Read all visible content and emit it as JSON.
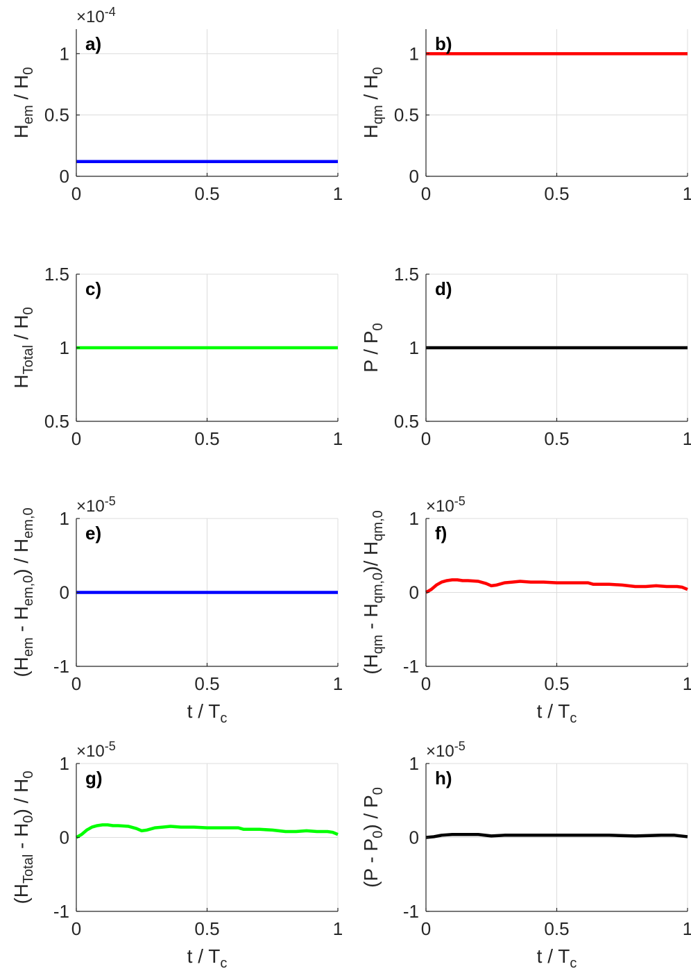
{
  "chart_data": [
    {
      "type": "line",
      "panel": "a)",
      "xlim": [
        0,
        1
      ],
      "ylim": [
        0,
        1.2
      ],
      "xticks": [
        0,
        0.5,
        1
      ],
      "xtick_labels": [
        "0",
        "0.5",
        "1"
      ],
      "yticks": [
        0,
        0.5,
        1
      ],
      "ytick_labels": [
        "0",
        "0.5",
        "1"
      ],
      "exponent": "×10^-4",
      "exponent_base": "×10",
      "exponent_power": "-4",
      "xlabel": "",
      "ylabel": {
        "main": "H",
        "sub": "em",
        "tail": " / H",
        "sub2": "0"
      },
      "series": [
        {
          "name": "Hem",
          "color": "#0000ff",
          "x": [
            0,
            1
          ],
          "y": [
            0.12,
            0.12
          ]
        }
      ]
    },
    {
      "type": "line",
      "panel": "b)",
      "xlim": [
        0,
        1
      ],
      "ylim": [
        0,
        1.2
      ],
      "xticks": [
        0,
        0.5,
        1
      ],
      "xtick_labels": [
        "0",
        "0.5",
        "1"
      ],
      "yticks": [
        0,
        0.5,
        1
      ],
      "ytick_labels": [
        "0",
        "0.5",
        "1"
      ],
      "exponent": "",
      "xlabel": "",
      "ylabel": {
        "main": "H",
        "sub": "qm",
        "tail": " / H",
        "sub2": "0"
      },
      "series": [
        {
          "name": "Hqm",
          "color": "#ff0000",
          "x": [
            0,
            1
          ],
          "y": [
            1.0,
            1.0
          ]
        }
      ]
    },
    {
      "type": "line",
      "panel": "c)",
      "xlim": [
        0,
        1
      ],
      "ylim": [
        0.5,
        1.5
      ],
      "xticks": [
        0,
        0.5,
        1
      ],
      "xtick_labels": [
        "0",
        "0.5",
        "1"
      ],
      "yticks": [
        0.5,
        1,
        1.5
      ],
      "ytick_labels": [
        "0.5",
        "1",
        "1.5"
      ],
      "exponent": "",
      "xlabel": "",
      "ylabel": {
        "main": "H",
        "sub": "Total",
        "tail": " / H",
        "sub2": "0"
      },
      "series": [
        {
          "name": "HTotal",
          "color": "#00ff00",
          "x": [
            0,
            1
          ],
          "y": [
            1.0,
            1.0
          ]
        }
      ]
    },
    {
      "type": "line",
      "panel": "d)",
      "xlim": [
        0,
        1
      ],
      "ylim": [
        0.5,
        1.5
      ],
      "xticks": [
        0,
        0.5,
        1
      ],
      "xtick_labels": [
        "0",
        "0.5",
        "1"
      ],
      "yticks": [
        0.5,
        1,
        1.5
      ],
      "ytick_labels": [
        "0.5",
        "1",
        "1.5"
      ],
      "exponent": "",
      "xlabel": "",
      "ylabel": {
        "main": "P / P",
        "sub": "0",
        "tail": "",
        "sub2": ""
      },
      "series": [
        {
          "name": "P",
          "color": "#000000",
          "x": [
            0,
            1
          ],
          "y": [
            1.0,
            1.0
          ]
        }
      ]
    },
    {
      "type": "line",
      "panel": "e)",
      "xlim": [
        0,
        1
      ],
      "ylim": [
        -1,
        1
      ],
      "xticks": [
        0,
        0.5,
        1
      ],
      "xtick_labels": [
        "0",
        "0.5",
        "1"
      ],
      "yticks": [
        -1,
        0,
        1
      ],
      "ytick_labels": [
        "-1",
        "0",
        "1"
      ],
      "exponent": "×10^-5",
      "exponent_base": "×10",
      "exponent_power": "-5",
      "xlabel": {
        "main": "t / T",
        "sub": "c"
      },
      "ylabel": {
        "main": "(H",
        "sub": "em",
        "tail": " - H",
        "sub2": "em,0",
        "tail2": ") / H",
        "sub3": "em,0"
      },
      "series": [
        {
          "name": "dHem",
          "color": "#0000ff",
          "x": [
            0,
            1
          ],
          "y": [
            0,
            0
          ]
        }
      ]
    },
    {
      "type": "line",
      "panel": "f)",
      "xlim": [
        0,
        1
      ],
      "ylim": [
        -1,
        1
      ],
      "xticks": [
        0,
        0.5,
        1
      ],
      "xtick_labels": [
        "0",
        "0.5",
        "1"
      ],
      "yticks": [
        -1,
        0,
        1
      ],
      "ytick_labels": [
        "-1",
        "0",
        "1"
      ],
      "exponent": "×10^-5",
      "exponent_base": "×10",
      "exponent_power": "-5",
      "xlabel": {
        "main": "t / T",
        "sub": "c"
      },
      "ylabel": {
        "main": "(H",
        "sub": "qm",
        "tail": " - H",
        "sub2": "qm,0",
        "tail2": ")/ H",
        "sub3": "qm,0"
      },
      "series": [
        {
          "name": "dHqm",
          "color": "#ff0000",
          "x": [
            0,
            0.02,
            0.04,
            0.06,
            0.08,
            0.1,
            0.12,
            0.14,
            0.16,
            0.2,
            0.23,
            0.25,
            0.27,
            0.3,
            0.33,
            0.36,
            0.4,
            0.45,
            0.5,
            0.55,
            0.6,
            0.62,
            0.64,
            0.7,
            0.75,
            0.8,
            0.84,
            0.88,
            0.92,
            0.96,
            0.98,
            1.0
          ],
          "y": [
            0,
            0.04,
            0.1,
            0.14,
            0.16,
            0.17,
            0.17,
            0.16,
            0.16,
            0.15,
            0.12,
            0.09,
            0.1,
            0.13,
            0.14,
            0.15,
            0.14,
            0.14,
            0.13,
            0.13,
            0.13,
            0.13,
            0.11,
            0.11,
            0.1,
            0.08,
            0.08,
            0.09,
            0.08,
            0.08,
            0.07,
            0.04
          ]
        }
      ]
    },
    {
      "type": "line",
      "panel": "g)",
      "xlim": [
        0,
        1
      ],
      "ylim": [
        -1,
        1
      ],
      "xticks": [
        0,
        0.5,
        1
      ],
      "xtick_labels": [
        "0",
        "0.5",
        "1"
      ],
      "yticks": [
        -1,
        0,
        1
      ],
      "ytick_labels": [
        "-1",
        "0",
        "1"
      ],
      "exponent": "×10^-5",
      "exponent_base": "×10",
      "exponent_power": "-5",
      "xlabel": {
        "main": "t / T",
        "sub": "c"
      },
      "ylabel": {
        "main": "(H",
        "sub": "Total",
        "tail": " - H",
        "sub2": "0",
        "tail2": ") / H",
        "sub3": "0"
      },
      "series": [
        {
          "name": "dHTotal",
          "color": "#00ff00",
          "x": [
            0,
            0.02,
            0.04,
            0.06,
            0.08,
            0.1,
            0.12,
            0.14,
            0.16,
            0.2,
            0.23,
            0.25,
            0.27,
            0.3,
            0.33,
            0.36,
            0.4,
            0.45,
            0.5,
            0.55,
            0.6,
            0.62,
            0.64,
            0.7,
            0.75,
            0.8,
            0.84,
            0.88,
            0.92,
            0.96,
            0.98,
            1.0
          ],
          "y": [
            0,
            0.04,
            0.1,
            0.14,
            0.16,
            0.17,
            0.17,
            0.16,
            0.16,
            0.15,
            0.12,
            0.09,
            0.1,
            0.13,
            0.14,
            0.15,
            0.14,
            0.14,
            0.13,
            0.13,
            0.13,
            0.13,
            0.11,
            0.11,
            0.1,
            0.08,
            0.08,
            0.09,
            0.08,
            0.08,
            0.07,
            0.04
          ]
        }
      ]
    },
    {
      "type": "line",
      "panel": "h)",
      "xlim": [
        0,
        1
      ],
      "ylim": [
        -1,
        1
      ],
      "xticks": [
        0,
        0.5,
        1
      ],
      "xtick_labels": [
        "0",
        "0.5",
        "1"
      ],
      "yticks": [
        -1,
        0,
        1
      ],
      "ytick_labels": [
        "-1",
        "0",
        "1"
      ],
      "exponent": "×10^-5",
      "exponent_base": "×10",
      "exponent_power": "-5",
      "xlabel": {
        "main": "t / T",
        "sub": "c"
      },
      "ylabel": {
        "main": "(P - P",
        "sub": "0",
        "tail": ") / P",
        "sub2": "0"
      },
      "series": [
        {
          "name": "dP",
          "color": "#000000",
          "x": [
            0,
            0.03,
            0.06,
            0.1,
            0.15,
            0.2,
            0.25,
            0.3,
            0.4,
            0.5,
            0.6,
            0.7,
            0.8,
            0.9,
            0.95,
            1.0
          ],
          "y": [
            0,
            0.01,
            0.03,
            0.04,
            0.04,
            0.04,
            0.02,
            0.03,
            0.03,
            0.03,
            0.03,
            0.03,
            0.02,
            0.03,
            0.03,
            0.01
          ]
        }
      ]
    }
  ]
}
